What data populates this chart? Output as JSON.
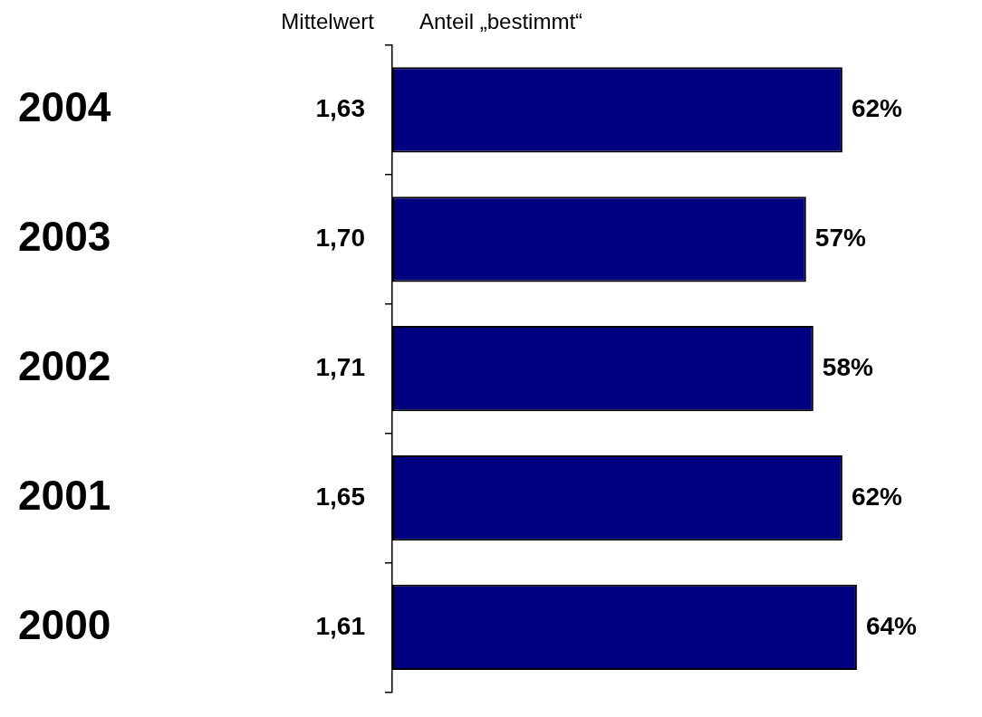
{
  "chart_data": {
    "type": "bar",
    "orientation": "horizontal",
    "title": "Anteil „bestimmt“",
    "categories": [
      "2004",
      "2003",
      "2002",
      "2001",
      "2000"
    ],
    "values": [
      62,
      57,
      58,
      62,
      64
    ],
    "color": "#000080",
    "value_labels": [
      "62%",
      "57%",
      "58%",
      "62%",
      "64%"
    ],
    "tick_labels": "y",
    "grid": false,
    "legend": false,
    "annotations": [
      "Mittelwert",
      "1,63",
      "1,70",
      "1,71",
      "1,65",
      "1,61"
    ]
  }
}
